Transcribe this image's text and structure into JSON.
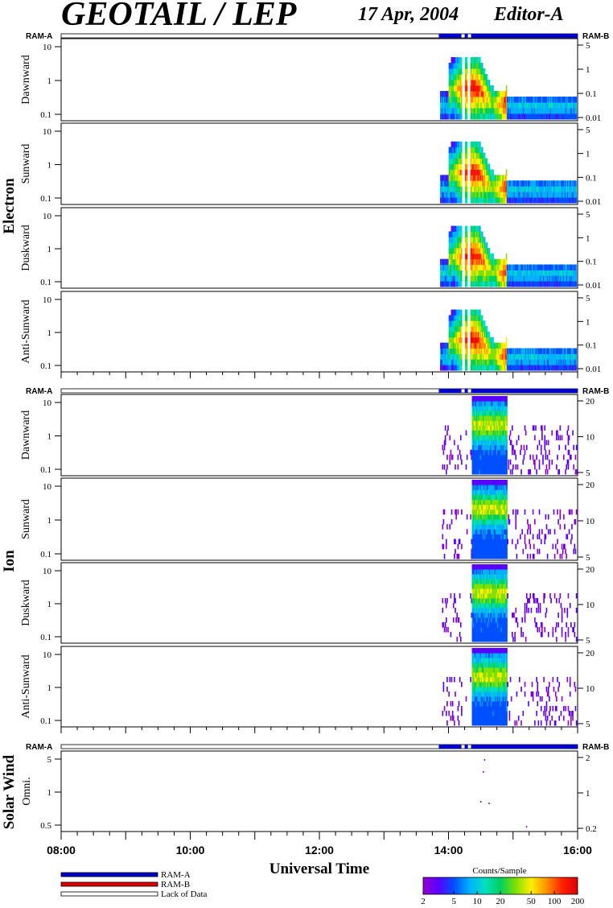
{
  "header": {
    "instrument": "GEOTAIL / LEP",
    "date": "17 Apr, 2004",
    "editor": "Editor-A"
  },
  "status_bar": {
    "left_label": "RAM-A",
    "right_label": "RAM-B"
  },
  "groups": {
    "electron": "Electron",
    "ion": "Ion",
    "solar_wind": "Solar Wind"
  },
  "colors": {
    "ram_a": "#0000cc",
    "ram_b": "#dd0000",
    "lack": "#ffffff",
    "colormap": [
      "#9400d3",
      "#5a00ff",
      "#0050ff",
      "#00b0ff",
      "#00e0c0",
      "#00d060",
      "#80e000",
      "#ffee00",
      "#ff9000",
      "#ff2000",
      "#e00000"
    ]
  },
  "chart_data": {
    "type": "heatmap",
    "xlabel": "Universal Time",
    "xlim": [
      8,
      16
    ],
    "x_ticks": [
      "08:00",
      "10:00",
      "12:00",
      "14:00",
      "16:00"
    ],
    "data_coverage": [
      {
        "start": 13.85,
        "end": 14.2,
        "mode": "RAM-A"
      },
      {
        "start": 14.25,
        "end": 14.3,
        "mode": "RAM-A"
      },
      {
        "start": 14.35,
        "end": 16.0,
        "mode": "RAM-A"
      }
    ],
    "colorbar": {
      "title": "Counts/Sample",
      "range": [
        2,
        200
      ],
      "scale": "log",
      "ticks": [
        "2",
        "5",
        "10",
        "20",
        "50",
        "100",
        "200"
      ]
    },
    "panels": [
      {
        "group": "electron",
        "ylabel": "Dawnward",
        "left_ticks": [
          "10",
          "1",
          "0.1"
        ],
        "right_ticks": [
          "5",
          "1",
          "0.1",
          "0.01"
        ]
      },
      {
        "group": "electron",
        "ylabel": "Sunward",
        "left_ticks": [
          "10",
          "1",
          "0.1"
        ],
        "right_ticks": [
          "5",
          "1",
          "0.1",
          "0.01"
        ]
      },
      {
        "group": "electron",
        "ylabel": "Duskward",
        "left_ticks": [
          "10",
          "1",
          "0.1"
        ],
        "right_ticks": [
          "5",
          "1",
          "0.1",
          "0.01"
        ]
      },
      {
        "group": "electron",
        "ylabel": "Anti-Sunward",
        "left_ticks": [
          "10",
          "1",
          "0.1"
        ],
        "right_ticks": [
          "5",
          "1",
          "0.1",
          "0.01"
        ]
      },
      {
        "group": "ion",
        "ylabel": "Dawnward",
        "left_ticks": [
          "10",
          "1",
          "0.1"
        ],
        "right_ticks": [
          "20",
          "10",
          "5"
        ]
      },
      {
        "group": "ion",
        "ylabel": "Sunward",
        "left_ticks": [
          "10",
          "1",
          "0.1"
        ],
        "right_ticks": [
          "20",
          "10",
          "5"
        ]
      },
      {
        "group": "ion",
        "ylabel": "Duskward",
        "left_ticks": [
          "10",
          "1",
          "0.1"
        ],
        "right_ticks": [
          "20",
          "10",
          "5"
        ]
      },
      {
        "group": "ion",
        "ylabel": "Anti-Sunward",
        "left_ticks": [
          "10",
          "1",
          "0.1"
        ],
        "right_ticks": [
          "20",
          "10",
          "5"
        ]
      },
      {
        "group": "solar_wind",
        "ylabel": "Omni.",
        "left_ticks": [
          "5",
          "1",
          "0.5"
        ],
        "right_ticks": [
          "2",
          "1",
          "0.2"
        ]
      }
    ]
  },
  "legend": {
    "items": [
      {
        "label": "RAM-A",
        "color": "#0000cc"
      },
      {
        "label": "RAM-B",
        "color": "#dd0000"
      },
      {
        "label": "Lack of Data",
        "color": "#ffffff"
      }
    ]
  }
}
